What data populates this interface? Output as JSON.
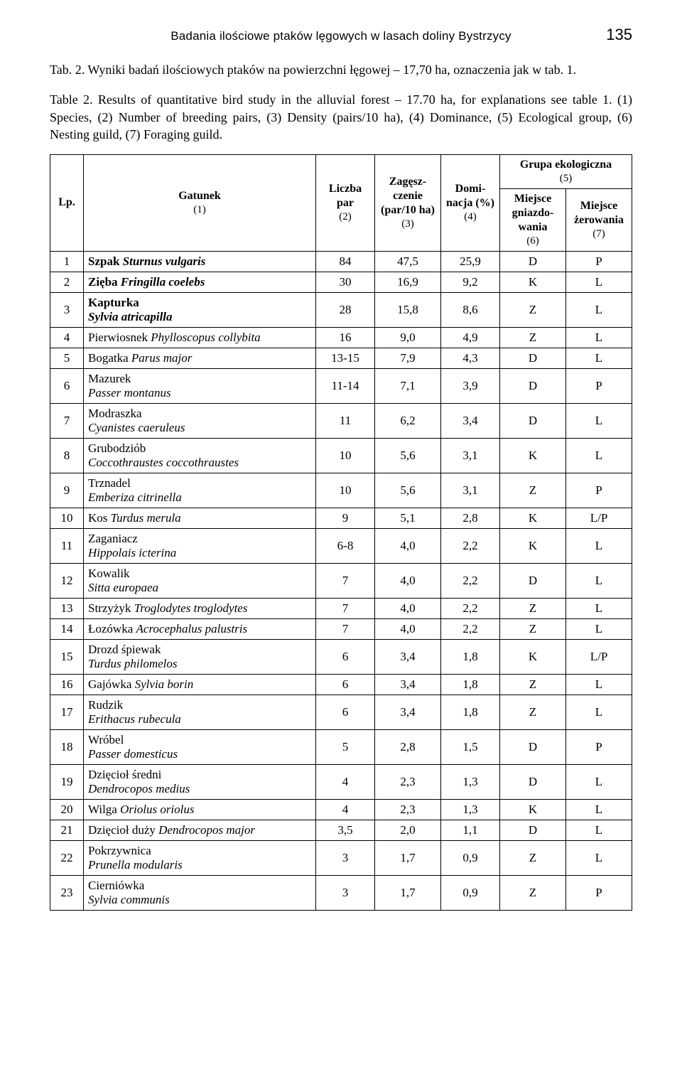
{
  "running_head": {
    "text": "Badania ilościowe ptaków lęgowych w lasach doliny Bystrzycy",
    "page_number": "135"
  },
  "caption": {
    "line1_label": "Tab. 2.",
    "line1_text": "Wyniki badań ilościowych ptaków na powierzchni łęgowej – 17,70 ha, oznaczenia jak w tab. 1.",
    "line2_label": "Table 2.",
    "line2_text": "Results of quantitative bird study in the alluvial forest – 17.70 ha, for explanations see table 1. (1) Species, (2) Number of breeding pairs, (3) Density (pairs/10 ha), (4) Dominance, (5) Ecological group, (6) Nesting guild, (7) Foraging guild."
  },
  "table": {
    "headers": {
      "lp": "Lp.",
      "species": "Gatunek",
      "species_sub": "(1)",
      "pairs": "Liczba par",
      "pairs_sub": "(2)",
      "density": "Zagęsz­czenie (par/10 ha)",
      "density_sub": "(3)",
      "dominance": "Domi­nacja (%)",
      "dominance_sub": "(4)",
      "group": "Grupa ekologiczna",
      "group_sub": "(5)",
      "nesting": "Miejsce gniazdo­wania",
      "nesting_sub": "(6)",
      "foraging": "Miejsce żerowa­nia",
      "foraging_sub": "(7)"
    },
    "rows": [
      {
        "lp": "1",
        "common": "Szpak",
        "latin": "Sturnus vulgaris",
        "bold": true,
        "pairs": "84",
        "density": "47,5",
        "dom": "25,9",
        "nest": "D",
        "for": "P"
      },
      {
        "lp": "2",
        "common": "Zięba",
        "latin": "Fringilla coelebs",
        "bold": true,
        "pairs": "30",
        "density": "16,9",
        "dom": "9,2",
        "nest": "K",
        "for": "L"
      },
      {
        "lp": "3",
        "common": "Kapturka",
        "latin": "Sylvia atricapilla",
        "bold": true,
        "multiline": true,
        "pairs": "28",
        "density": "15,8",
        "dom": "8,6",
        "nest": "Z",
        "for": "L"
      },
      {
        "lp": "4",
        "common": "Pierwiosnek",
        "latin": "Phylloscopus collybita",
        "pairs": "16",
        "density": "9,0",
        "dom": "4,9",
        "nest": "Z",
        "for": "L"
      },
      {
        "lp": "5",
        "common": "Bogatka",
        "latin": "Parus major",
        "pairs": "13-15",
        "density": "7,9",
        "dom": "4,3",
        "nest": "D",
        "for": "L"
      },
      {
        "lp": "6",
        "common": "Mazurek",
        "latin": "Passer montanus",
        "multiline": true,
        "pairs": "11-14",
        "density": "7,1",
        "dom": "3,9",
        "nest": "D",
        "for": "P"
      },
      {
        "lp": "7",
        "common": "Modraszka",
        "latin": "Cyanistes caeruleus",
        "multiline": true,
        "pairs": "11",
        "density": "6,2",
        "dom": "3,4",
        "nest": "D",
        "for": "L"
      },
      {
        "lp": "8",
        "common": "Grubodziób",
        "latin": "Coccothraustes coccothraustes",
        "multiline": true,
        "pairs": "10",
        "density": "5,6",
        "dom": "3,1",
        "nest": "K",
        "for": "L"
      },
      {
        "lp": "9",
        "common": "Trznadel",
        "latin": "Emberiza citrinella",
        "multiline": true,
        "pairs": "10",
        "density": "5,6",
        "dom": "3,1",
        "nest": "Z",
        "for": "P"
      },
      {
        "lp": "10",
        "common": "Kos",
        "latin": "Turdus merula",
        "pairs": "9",
        "density": "5,1",
        "dom": "2,8",
        "nest": "K",
        "for": "L/P"
      },
      {
        "lp": "11",
        "common": "Zaganiacz",
        "latin": "Hippolais icterina",
        "multiline": true,
        "pairs": "6-8",
        "density": "4,0",
        "dom": "2,2",
        "nest": "K",
        "for": "L"
      },
      {
        "lp": "12",
        "common": "Kowalik",
        "latin": "Sitta europaea",
        "multiline": true,
        "pairs": "7",
        "density": "4,0",
        "dom": "2,2",
        "nest": "D",
        "for": "L"
      },
      {
        "lp": "13",
        "common": "Strzyżyk",
        "latin": "Troglodytes troglodytes",
        "pairs": "7",
        "density": "4,0",
        "dom": "2,2",
        "nest": "Z",
        "for": "L"
      },
      {
        "lp": "14",
        "common": "Łozówka",
        "latin": "Acrocephalus palustris",
        "pairs": "7",
        "density": "4,0",
        "dom": "2,2",
        "nest": "Z",
        "for": "L"
      },
      {
        "lp": "15",
        "common": "Drozd śpiewak",
        "latin": "Turdus philomelos",
        "multiline": true,
        "pairs": "6",
        "density": "3,4",
        "dom": "1,8",
        "nest": "K",
        "for": "L/P"
      },
      {
        "lp": "16",
        "common": "Gajówka",
        "latin": "Sylvia borin",
        "pairs": "6",
        "density": "3,4",
        "dom": "1,8",
        "nest": "Z",
        "for": "L"
      },
      {
        "lp": "17",
        "common": "Rudzik",
        "latin": "Erithacus rubecula",
        "multiline": true,
        "pairs": "6",
        "density": "3,4",
        "dom": "1,8",
        "nest": "Z",
        "for": "L"
      },
      {
        "lp": "18",
        "common": "Wróbel",
        "latin": "Passer domesticus",
        "multiline": true,
        "pairs": "5",
        "density": "2,8",
        "dom": "1,5",
        "nest": "D",
        "for": "P"
      },
      {
        "lp": "19",
        "common": "Dzięcioł średni",
        "latin": "Dendrocopos medius",
        "multiline": true,
        "pairs": "4",
        "density": "2,3",
        "dom": "1,3",
        "nest": "D",
        "for": "L"
      },
      {
        "lp": "20",
        "common": "Wilga",
        "latin": "Oriolus oriolus",
        "pairs": "4",
        "density": "2,3",
        "dom": "1,3",
        "nest": "K",
        "for": "L"
      },
      {
        "lp": "21",
        "common": "Dzięcioł duży",
        "latin": "Dendrocopos major",
        "pairs": "3,5",
        "density": "2,0",
        "dom": "1,1",
        "nest": "D",
        "for": "L"
      },
      {
        "lp": "22",
        "common": "Pokrzywnica",
        "latin": "Prunella modularis",
        "multiline": true,
        "pairs": "3",
        "density": "1,7",
        "dom": "0,9",
        "nest": "Z",
        "for": "L"
      },
      {
        "lp": "23",
        "common": "Cierniówka",
        "latin": "Sylvia communis",
        "multiline": true,
        "pairs": "3",
        "density": "1,7",
        "dom": "0,9",
        "nest": "Z",
        "for": "P"
      }
    ]
  }
}
